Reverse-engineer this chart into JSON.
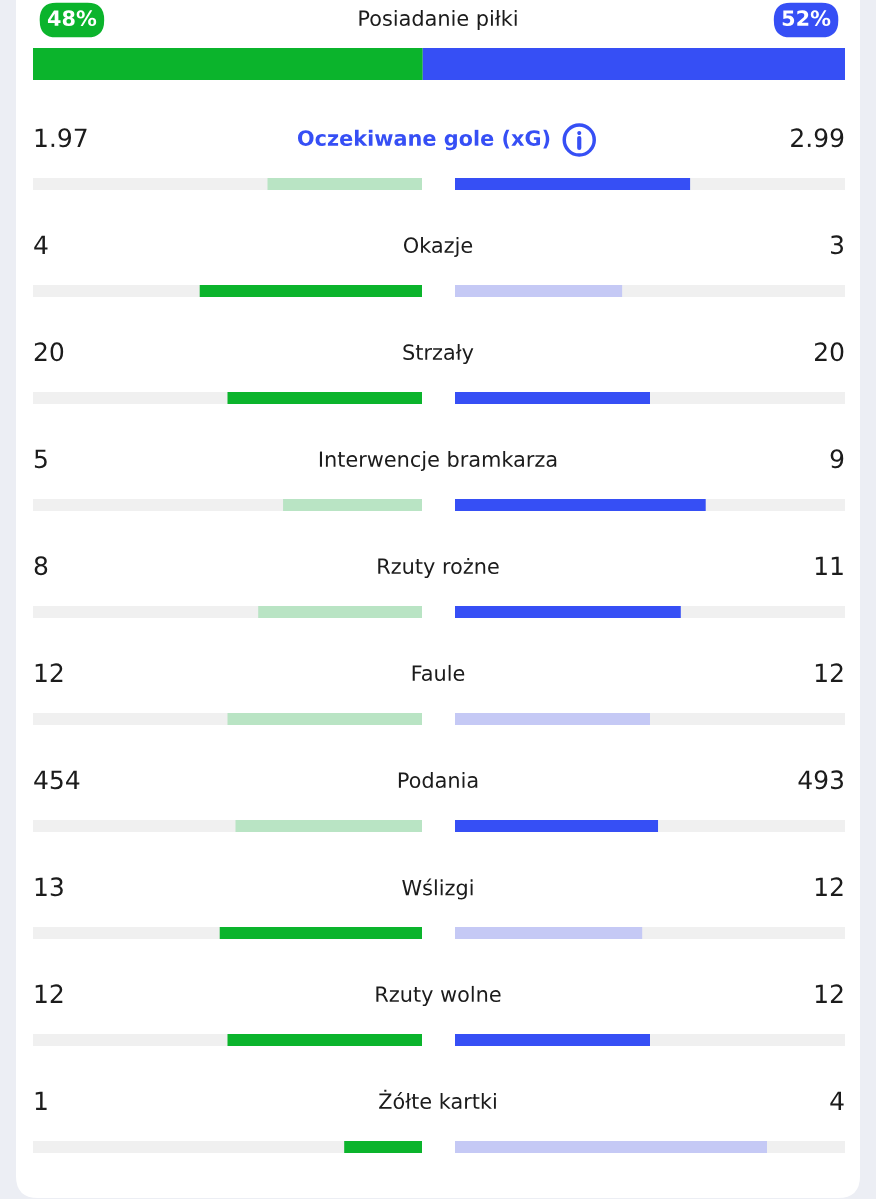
{
  "chart_data": [
    {
      "type": "other",
      "categories": [
        "Posiadanie piłki"
      ],
      "series": [
        {
          "color": "#0bb42c",
          "values": [
            48
          ],
          "value_labels": [
            "48%"
          ]
        },
        {
          "color": "#364ff5",
          "values": [
            52
          ],
          "value_labels": [
            "52%"
          ]
        }
      ]
    },
    {
      "type": "other",
      "data_labels": true,
      "categories": [
        "Oczekiwane gole (xG)",
        "Okazje",
        "Strzały",
        "Interwencje bramkarza",
        "Rzuty rożne",
        "Faule",
        "Podania",
        "Wślizgi",
        "Rzuty wolne",
        "Żółte kartki"
      ],
      "series": [
        {
          "values": [
            1.97,
            4,
            20,
            5,
            8,
            12,
            454,
            13,
            12,
            1
          ],
          "colors": [
            "#b9e4c4",
            "#0bb42c",
            "#0bb42c",
            "#b9e4c4",
            "#b9e4c4",
            "#b9e4c4",
            "#b9e4c4",
            "#0bb42c",
            "#0bb42c",
            "#0bb42c"
          ]
        },
        {
          "values": [
            2.99,
            3,
            20,
            9,
            11,
            12,
            493,
            12,
            12,
            4
          ],
          "colors": [
            "#364ff5",
            "#c5c9f5",
            "#364ff5",
            "#364ff5",
            "#364ff5",
            "#c5c9f5",
            "#364ff5",
            "#c5c9f5",
            "#364ff5",
            "#c5c9f5"
          ]
        }
      ]
    }
  ]
}
